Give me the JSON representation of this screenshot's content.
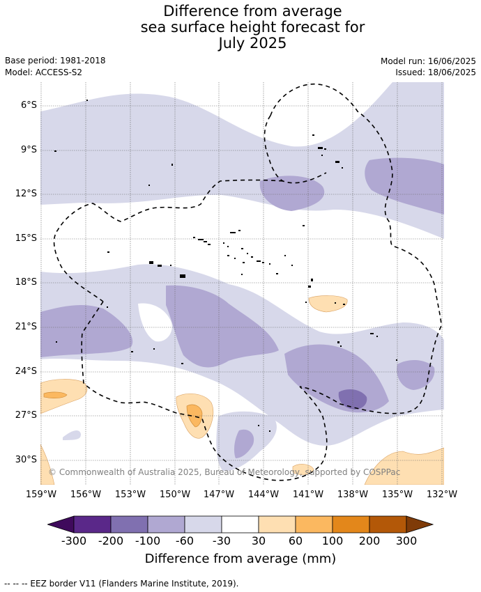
{
  "header": {
    "title_lines": [
      "Difference from average",
      "sea surface height forecast for",
      "July 2025"
    ],
    "base_period": "Base period: 1981-2018",
    "model": "Model: ACCESS-S2",
    "model_run": "Model run: 16/06/2025",
    "issued": "Issued: 18/06/2025"
  },
  "map": {
    "lat_labels": [
      "6°S",
      "9°S",
      "12°S",
      "15°S",
      "18°S",
      "21°S",
      "24°S",
      "27°S",
      "30°S"
    ],
    "lon_labels": [
      "159°W",
      "156°W",
      "153°W",
      "150°W",
      "147°W",
      "144°W",
      "141°W",
      "138°W",
      "135°W",
      "132°W"
    ],
    "copyright": "© Commonwealth of Australia 2025, Bureau of Meteorology, supported by COSPPac"
  },
  "colorbar": {
    "ticks": [
      "-300",
      "-200",
      "-100",
      "-60",
      "-30",
      "30",
      "60",
      "100",
      "200",
      "300"
    ],
    "colors": [
      "#3f0a5c",
      "#5a2889",
      "#8070b0",
      "#b0a8d2",
      "#d7d8ea",
      "#ffffff",
      "#fedfb2",
      "#fbb860",
      "#e3871b",
      "#b35808",
      "#7f3b08"
    ],
    "title": "Difference from average (mm)"
  },
  "legend": {
    "eez": "--  --  -- EEZ border V11 (Flanders Marine Institute, 2019)."
  }
}
